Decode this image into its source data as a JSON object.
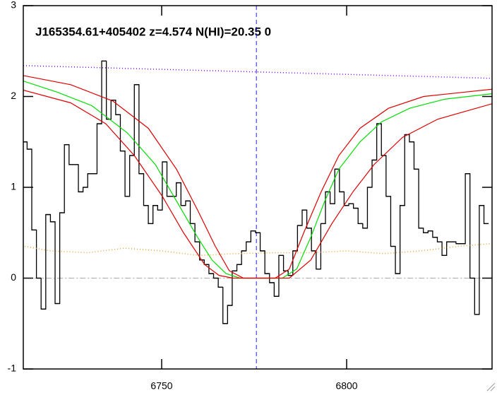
{
  "chart_data": {
    "type": "spectrum",
    "title": "J165354.61+405402 z=4.574 N(HI)=20.35 0",
    "xlim": [
      6712.6,
      6839.3
    ],
    "ylim": [
      -1,
      3
    ],
    "xticks": [
      6750,
      6800
    ],
    "yticks": [
      -1,
      0,
      1,
      2,
      3
    ],
    "hlines": [
      0
    ],
    "vlines": [
      6775.6
    ],
    "series": [
      {
        "style": "steps",
        "color": "#000000",
        "x": [
          6713.0,
          6714.26,
          6715.52,
          6716.78,
          6718.04,
          6719.3,
          6720.56,
          6721.82,
          6723.08,
          6724.34,
          6725.6,
          6726.86,
          6728.12,
          6729.38,
          6730.64,
          6731.9,
          6733.16,
          6734.42,
          6735.68,
          6736.94,
          6738.2,
          6739.46,
          6740.72,
          6741.98,
          6743.24,
          6744.5,
          6745.76,
          6747.02,
          6748.28,
          6749.54,
          6750.8,
          6752.06,
          6753.32,
          6754.58,
          6755.84,
          6757.1,
          6758.36,
          6759.62,
          6760.88,
          6762.14,
          6763.4,
          6764.66,
          6765.92,
          6767.18,
          6768.44,
          6769.7,
          6770.96,
          6772.22,
          6773.48,
          6774.74,
          6776.0,
          6777.26,
          6778.52,
          6779.78,
          6781.04,
          6782.3,
          6783.56,
          6784.82,
          6786.08,
          6787.34,
          6788.6,
          6789.86,
          6791.12,
          6792.38,
          6793.64,
          6794.9,
          6796.16,
          6797.42,
          6798.68,
          6799.94,
          6801.2,
          6802.46,
          6803.72,
          6804.98,
          6806.24,
          6807.5,
          6808.76,
          6810.02,
          6811.28,
          6812.54,
          6813.8,
          6815.06,
          6816.32,
          6817.58,
          6818.84,
          6820.1,
          6821.36,
          6822.62,
          6823.88,
          6825.14,
          6826.4,
          6827.66,
          6828.92,
          6830.18,
          6831.44,
          6832.7,
          6833.96,
          6835.22,
          6836.48,
          6837.74
        ],
        "values": [
          1.5,
          1.42,
          0.53,
          0.0,
          -0.34,
          0.7,
          0.62,
          -0.28,
          0.72,
          1.47,
          1.25,
          1.25,
          0.95,
          1.0,
          1.15,
          1.15,
          1.7,
          2.39,
          1.75,
          1.96,
          1.8,
          1.4,
          0.9,
          1.35,
          2.13,
          1.15,
          0.8,
          0.6,
          0.8,
          0.75,
          1.28,
          0.9,
          0.9,
          1.05,
          0.8,
          0.85,
          0.6,
          0.4,
          0.2,
          0.15,
          0.05,
          0.0,
          -0.1,
          -0.5,
          -0.3,
          0.08,
          0.15,
          0.3,
          0.4,
          0.52,
          0.5,
          0.3,
          0.05,
          -0.05,
          -0.2,
          0.25,
          0.08,
          0.03,
          0.3,
          0.58,
          0.75,
          0.55,
          0.3,
          0.1,
          0.6,
          0.95,
          0.82,
          1.2,
          0.95,
          0.8,
          0.82,
          0.77,
          0.6,
          0.55,
          1.0,
          1.3,
          1.7,
          1.35,
          0.9,
          0.35,
          0.05,
          0.8,
          1.58,
          1.5,
          1.2,
          0.55,
          0.5,
          0.52,
          0.45,
          0.4,
          0.25,
          0.4,
          0.4,
          0.38,
          0.38,
          1.15,
          0.0,
          -0.4,
          0.8,
          0.6
        ]
      },
      {
        "style": "dotted",
        "color": "#e8a030",
        "x": [
          6713,
          6720,
          6730,
          6740,
          6750,
          6760,
          6770,
          6780,
          6790,
          6800,
          6810,
          6820,
          6830,
          6839
        ],
        "values": [
          0.35,
          0.3,
          0.28,
          0.33,
          0.3,
          0.25,
          0.27,
          0.28,
          0.28,
          0.3,
          0.27,
          0.3,
          0.35,
          0.38
        ]
      },
      {
        "style": "dotted",
        "color": "#8000ff",
        "x": [
          6712.6,
          6776,
          6839.3
        ],
        "values": [
          2.34,
          2.27,
          2.2
        ]
      },
      {
        "style": "solid",
        "color": "#00dd00",
        "x": [
          6712.6,
          6721.6,
          6731.1,
          6740.7,
          6748.3,
          6754.0,
          6759.7,
          6763.6,
          6767.4,
          6771.2,
          6782.6,
          6786.5,
          6790.3,
          6794.1,
          6797.9,
          6803.6,
          6809.4,
          6817.0,
          6826.5,
          6839.3
        ],
        "values": [
          2.17,
          2.05,
          1.9,
          1.6,
          1.25,
          0.85,
          0.45,
          0.2,
          0.05,
          0.0,
          0.0,
          0.1,
          0.45,
          0.85,
          1.2,
          1.5,
          1.72,
          1.87,
          1.97,
          2.03
        ]
      },
      {
        "style": "solid",
        "color": "#dd0000",
        "x": [
          6712.6,
          6725.4,
          6736.8,
          6746.4,
          6754.0,
          6759.7,
          6764.5,
          6768.3,
          6772.1,
          6780.7,
          6784.5,
          6788.4,
          6793.1,
          6797.9,
          6803.6,
          6811.3,
          6820.8,
          6839.3
        ],
        "values": [
          2.23,
          2.13,
          1.95,
          1.65,
          1.2,
          0.75,
          0.35,
          0.08,
          0.0,
          0.0,
          0.1,
          0.5,
          0.95,
          1.35,
          1.65,
          1.87,
          2.0,
          2.08
        ]
      },
      {
        "style": "solid",
        "color": "#dd0000",
        "x": [
          6712.6,
          6725.4,
          6734.9,
          6742.6,
          6750.2,
          6755.9,
          6761.6,
          6765.5,
          6769.3,
          6784.5,
          6790.3,
          6796.0,
          6801.7,
          6807.4,
          6815.1,
          6824.6,
          6839.3
        ],
        "values": [
          2.07,
          1.93,
          1.7,
          1.35,
          0.9,
          0.5,
          0.15,
          0.03,
          0.0,
          0.0,
          0.2,
          0.6,
          0.95,
          1.25,
          1.55,
          1.75,
          1.92
        ]
      }
    ]
  }
}
